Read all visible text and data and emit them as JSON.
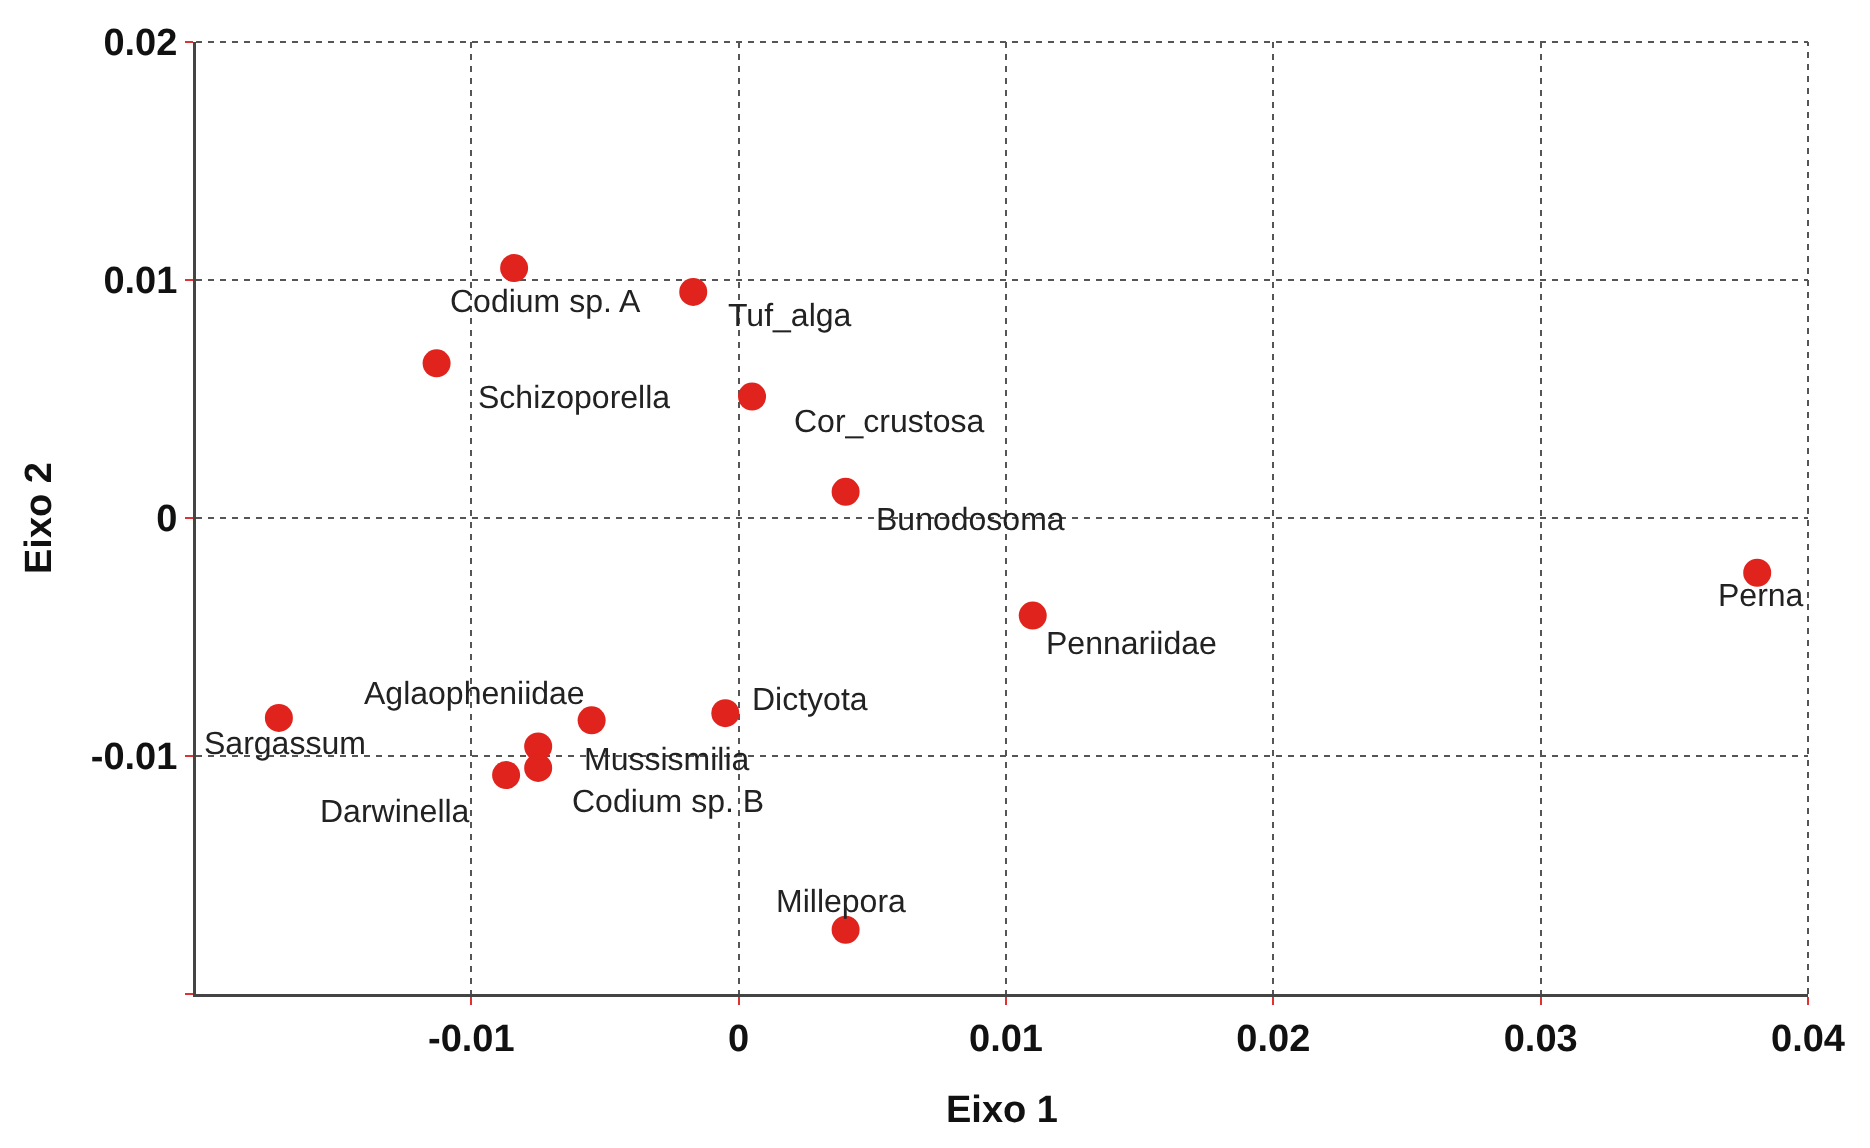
{
  "chart_data": {
    "type": "scatter",
    "xlabel": "Eixo 1",
    "ylabel": "Eixo 2",
    "x": [
      -0.0084,
      -0.0017,
      -0.0113,
      0.0005,
      0.004,
      0.011,
      0.0381,
      -0.0172,
      -0.0055,
      -0.0005,
      -0.0075,
      -0.0075,
      -0.0087,
      0.004
    ],
    "series": [
      {
        "color": "#e0231c",
        "values": [
          0.0105,
          0.0095,
          0.0065,
          0.0051,
          0.0011,
          -0.0041,
          -0.0023,
          -0.0084,
          -0.0085,
          -0.0082,
          -0.0096,
          -0.0105,
          -0.0108,
          -0.0173
        ]
      }
    ],
    "annotations": [
      {
        "text": "Codium sp. A",
        "x": -0.0084,
        "y": 0.0105
      },
      {
        "text": "Tuf_alga",
        "x": -0.0017,
        "y": 0.0095
      },
      {
        "text": "Schizoporella",
        "x": -0.0113,
        "y": 0.0065
      },
      {
        "text": "Cor_crustosa",
        "x": 0.0005,
        "y": 0.0051
      },
      {
        "text": "Bunodosoma",
        "x": 0.004,
        "y": 0.0011
      },
      {
        "text": "Pennariidae",
        "x": 0.011,
        "y": -0.0041
      },
      {
        "text": "Perna",
        "x": 0.0381,
        "y": -0.0023
      },
      {
        "text": "Sargassum",
        "x": -0.0172,
        "y": -0.0084
      },
      {
        "text": "Aglaopheniidae",
        "x": -0.0055,
        "y": -0.0085
      },
      {
        "text": "Dictyota",
        "x": -0.0005,
        "y": -0.0082
      },
      {
        "text": "Mussismilia",
        "x": -0.0075,
        "y": -0.0096
      },
      {
        "text": "Codium sp. B",
        "x": -0.0075,
        "y": -0.0105
      },
      {
        "text": "Darwinella",
        "x": -0.0087,
        "y": -0.0108
      },
      {
        "text": "Millepora",
        "x": 0.004,
        "y": -0.0173
      }
    ],
    "xlim": [
      -0.0203,
      0.04
    ],
    "xticks": [
      -0.01,
      0,
      0.01,
      0.02,
      0.03,
      0.04
    ],
    "ylim": [
      -0.02,
      0.02
    ],
    "yticks": [
      {
        "value": -0.02,
        "label": null
      },
      -0.01,
      0,
      0.01,
      0.02
    ],
    "grid": true,
    "marker": "circle"
  }
}
